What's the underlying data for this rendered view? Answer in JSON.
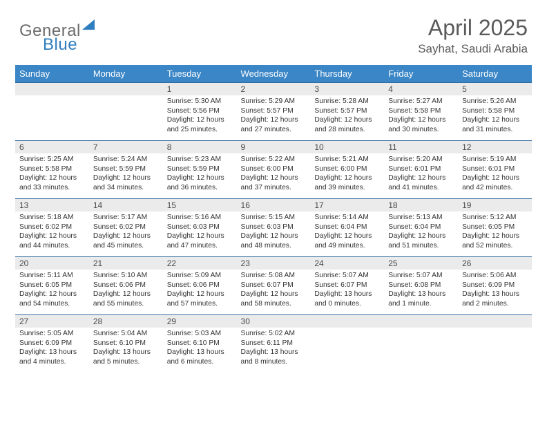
{
  "brand": {
    "part1": "General",
    "part2": "Blue"
  },
  "title": {
    "month": "April 2025",
    "location": "Sayhat, Saudi Arabia"
  },
  "calendar": {
    "type": "table",
    "header_bg": "#3b86c6",
    "header_fg": "#ffffff",
    "daynum_bg": "#ebebeb",
    "rule_color": "#2f6aa0",
    "body_font_size_pt": 8,
    "columns": [
      "Sunday",
      "Monday",
      "Tuesday",
      "Wednesday",
      "Thursday",
      "Friday",
      "Saturday"
    ],
    "weeks": [
      [
        null,
        null,
        {
          "n": "1",
          "sr": "5:30 AM",
          "ss": "5:56 PM",
          "dl": "12 hours and 25 minutes."
        },
        {
          "n": "2",
          "sr": "5:29 AM",
          "ss": "5:57 PM",
          "dl": "12 hours and 27 minutes."
        },
        {
          "n": "3",
          "sr": "5:28 AM",
          "ss": "5:57 PM",
          "dl": "12 hours and 28 minutes."
        },
        {
          "n": "4",
          "sr": "5:27 AM",
          "ss": "5:58 PM",
          "dl": "12 hours and 30 minutes."
        },
        {
          "n": "5",
          "sr": "5:26 AM",
          "ss": "5:58 PM",
          "dl": "12 hours and 31 minutes."
        }
      ],
      [
        {
          "n": "6",
          "sr": "5:25 AM",
          "ss": "5:58 PM",
          "dl": "12 hours and 33 minutes."
        },
        {
          "n": "7",
          "sr": "5:24 AM",
          "ss": "5:59 PM",
          "dl": "12 hours and 34 minutes."
        },
        {
          "n": "8",
          "sr": "5:23 AM",
          "ss": "5:59 PM",
          "dl": "12 hours and 36 minutes."
        },
        {
          "n": "9",
          "sr": "5:22 AM",
          "ss": "6:00 PM",
          "dl": "12 hours and 37 minutes."
        },
        {
          "n": "10",
          "sr": "5:21 AM",
          "ss": "6:00 PM",
          "dl": "12 hours and 39 minutes."
        },
        {
          "n": "11",
          "sr": "5:20 AM",
          "ss": "6:01 PM",
          "dl": "12 hours and 41 minutes."
        },
        {
          "n": "12",
          "sr": "5:19 AM",
          "ss": "6:01 PM",
          "dl": "12 hours and 42 minutes."
        }
      ],
      [
        {
          "n": "13",
          "sr": "5:18 AM",
          "ss": "6:02 PM",
          "dl": "12 hours and 44 minutes."
        },
        {
          "n": "14",
          "sr": "5:17 AM",
          "ss": "6:02 PM",
          "dl": "12 hours and 45 minutes."
        },
        {
          "n": "15",
          "sr": "5:16 AM",
          "ss": "6:03 PM",
          "dl": "12 hours and 47 minutes."
        },
        {
          "n": "16",
          "sr": "5:15 AM",
          "ss": "6:03 PM",
          "dl": "12 hours and 48 minutes."
        },
        {
          "n": "17",
          "sr": "5:14 AM",
          "ss": "6:04 PM",
          "dl": "12 hours and 49 minutes."
        },
        {
          "n": "18",
          "sr": "5:13 AM",
          "ss": "6:04 PM",
          "dl": "12 hours and 51 minutes."
        },
        {
          "n": "19",
          "sr": "5:12 AM",
          "ss": "6:05 PM",
          "dl": "12 hours and 52 minutes."
        }
      ],
      [
        {
          "n": "20",
          "sr": "5:11 AM",
          "ss": "6:05 PM",
          "dl": "12 hours and 54 minutes."
        },
        {
          "n": "21",
          "sr": "5:10 AM",
          "ss": "6:06 PM",
          "dl": "12 hours and 55 minutes."
        },
        {
          "n": "22",
          "sr": "5:09 AM",
          "ss": "6:06 PM",
          "dl": "12 hours and 57 minutes."
        },
        {
          "n": "23",
          "sr": "5:08 AM",
          "ss": "6:07 PM",
          "dl": "12 hours and 58 minutes."
        },
        {
          "n": "24",
          "sr": "5:07 AM",
          "ss": "6:07 PM",
          "dl": "13 hours and 0 minutes."
        },
        {
          "n": "25",
          "sr": "5:07 AM",
          "ss": "6:08 PM",
          "dl": "13 hours and 1 minute."
        },
        {
          "n": "26",
          "sr": "5:06 AM",
          "ss": "6:09 PM",
          "dl": "13 hours and 2 minutes."
        }
      ],
      [
        {
          "n": "27",
          "sr": "5:05 AM",
          "ss": "6:09 PM",
          "dl": "13 hours and 4 minutes."
        },
        {
          "n": "28",
          "sr": "5:04 AM",
          "ss": "6:10 PM",
          "dl": "13 hours and 5 minutes."
        },
        {
          "n": "29",
          "sr": "5:03 AM",
          "ss": "6:10 PM",
          "dl": "13 hours and 6 minutes."
        },
        {
          "n": "30",
          "sr": "5:02 AM",
          "ss": "6:11 PM",
          "dl": "13 hours and 8 minutes."
        },
        null,
        null,
        null
      ]
    ],
    "labels": {
      "sunrise": "Sunrise:",
      "sunset": "Sunset:",
      "daylight": "Daylight:"
    }
  }
}
